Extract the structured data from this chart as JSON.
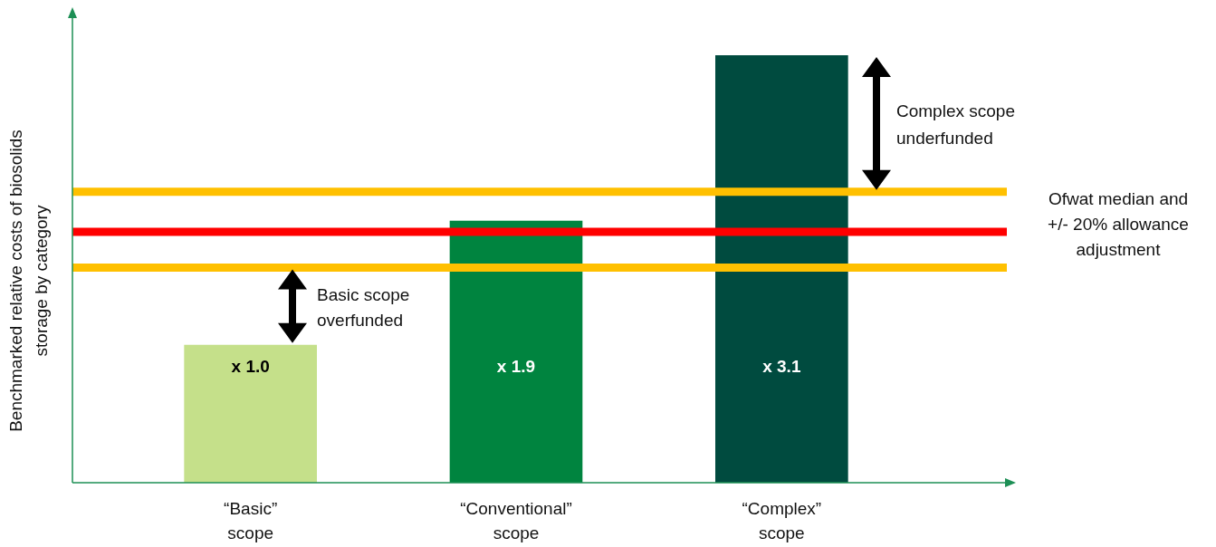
{
  "chart_data": {
    "type": "bar",
    "ylabel": "Benchmarked relative costs of biosolids storage by category",
    "categories": [
      "“Basic” scope",
      "“Conventional” scope",
      "“Complex” scope"
    ],
    "values": [
      1.0,
      1.9,
      3.1
    ],
    "colors": [
      "#c5e08a",
      "#00843f",
      "#004b3f"
    ],
    "value_labels": [
      "x 1.0",
      "x 1.9",
      "x 3.1"
    ],
    "ref_lines": [
      {
        "axis": "y",
        "value": 2.11,
        "label": null,
        "color": "#ffc000"
      },
      {
        "axis": "y",
        "value": 1.82,
        "label": "Ofwat median and +/- 20% allowance adjustment",
        "color": "#ff0000"
      },
      {
        "axis": "y",
        "value": 1.56,
        "label": null,
        "color": "#ffc000"
      }
    ],
    "annotations": [
      "Complex scope underfunded",
      "Basic scope overfunded"
    ]
  }
}
